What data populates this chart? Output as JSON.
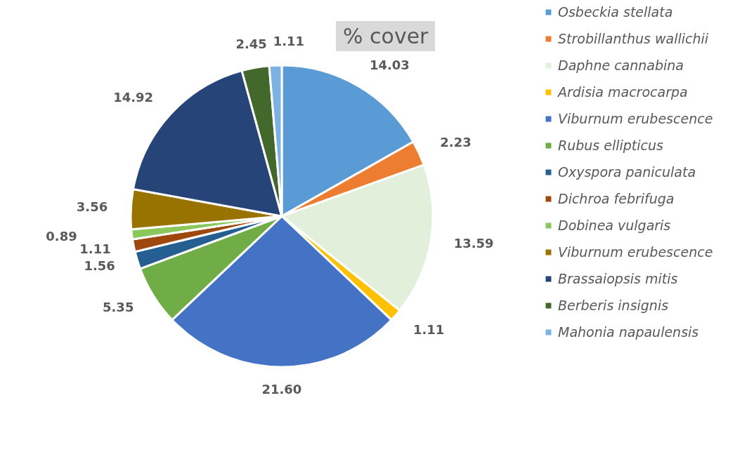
{
  "chart_data": {
    "type": "pie",
    "title": "% cover",
    "categories": [
      "Osbeckia stellata",
      "Strobillanthus wallichii",
      "Daphne cannabina",
      "Ardisia macrocarpa",
      "Viburnum erubescence",
      "Rubus ellipticus",
      "Oxyspora paniculata",
      "Dichroa febrifuga",
      "Dobinea vulgaris",
      "Viburnum erubescence",
      "Brassaiopsis mitis",
      "Berberis insignis",
      "Mahonia napaulensis"
    ],
    "values": [
      14.03,
      2.23,
      13.59,
      1.11,
      21.6,
      5.35,
      1.56,
      1.11,
      0.89,
      3.56,
      14.92,
      2.45,
      1.11
    ],
    "colors": [
      "#5b9bd5",
      "#ed7d31",
      "#e2efda",
      "#ffc000",
      "#4472c4",
      "#70ad47",
      "#255e91",
      "#9e480e",
      "#8bc85c",
      "#997300",
      "#264478",
      "#43682b",
      "#7cb1e3"
    ],
    "value_labels": [
      "14.03",
      "2.23",
      "13.59",
      "1.11",
      "21.60",
      "5.35",
      "1.56",
      "1.11",
      "0.89",
      "3.56",
      "14.92",
      "2.45",
      "1.11"
    ],
    "legend": "right"
  }
}
